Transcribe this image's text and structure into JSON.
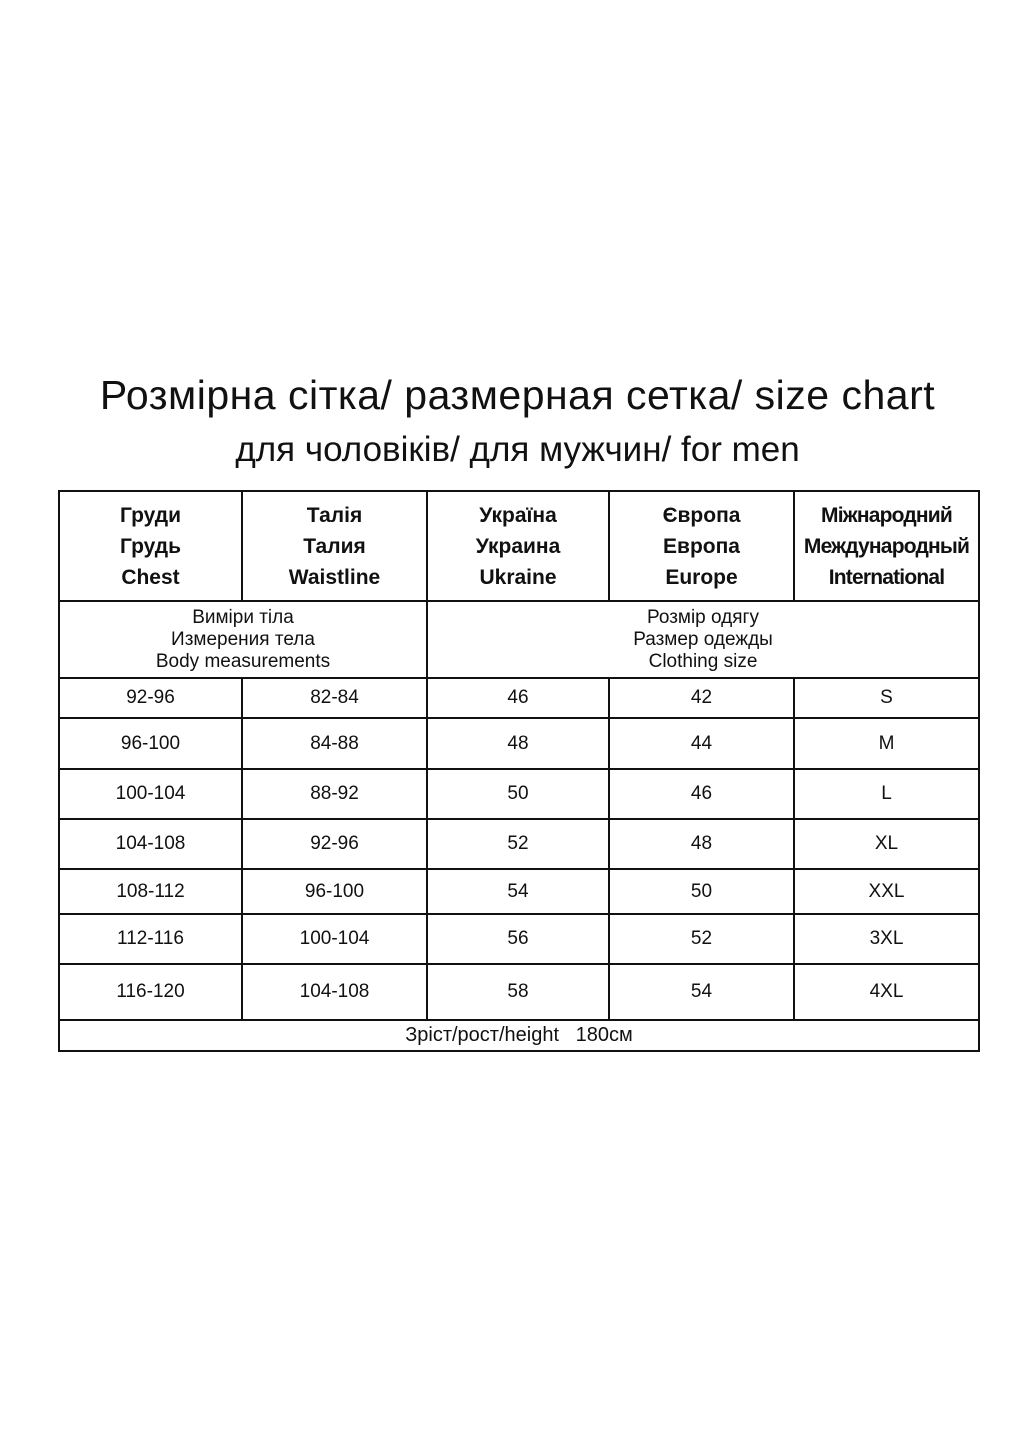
{
  "title": "Розмірна сітка/ размерная сетка/ size chart",
  "subtitle": "для чоловіків/ для мужчин/ for men",
  "headers": [
    [
      "Груди",
      "Грудь",
      "Chest"
    ],
    [
      "Талія",
      "Талия",
      "Waistline"
    ],
    [
      "Україна",
      "Украина",
      "Ukraine"
    ],
    [
      "Європа",
      "Европа",
      "Europe"
    ],
    [
      "Міжнародний",
      "Международный",
      "International"
    ]
  ],
  "groups": {
    "body": [
      "Виміри тіла",
      "Измерения тела",
      "Body measurements"
    ],
    "clothing": [
      "Розмір одягу",
      "Размер одежды",
      "Clothing size"
    ]
  },
  "rows": [
    [
      "92-96",
      "82-84",
      "46",
      "42",
      "S"
    ],
    [
      "96-100",
      "84-88",
      "48",
      "44",
      "M"
    ],
    [
      "100-104",
      "88-92",
      "50",
      "46",
      "L"
    ],
    [
      "104-108",
      "92-96",
      "52",
      "48",
      "XL"
    ],
    [
      "108-112",
      "96-100",
      "54",
      "50",
      "XXL"
    ],
    [
      "112-116",
      "100-104",
      "56",
      "52",
      "3XL"
    ],
    [
      "116-120",
      "104-108",
      "58",
      "54",
      "4XL"
    ]
  ],
  "footer": "Зріст/рост/height   180см"
}
